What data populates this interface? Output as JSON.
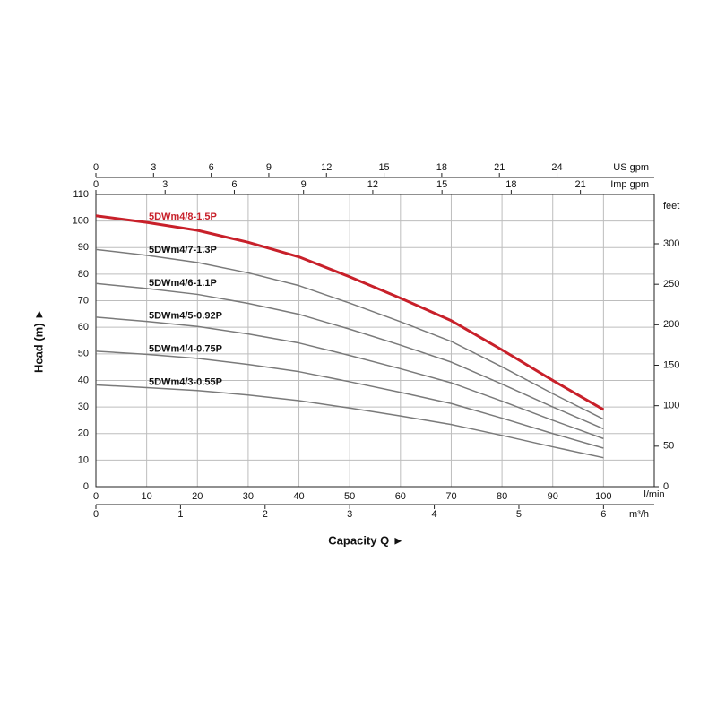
{
  "chart_data": {
    "type": "line",
    "xlabel": "Capacity Q ►",
    "ylabel": "Head (m) ►",
    "x_unit": "l/min",
    "x": [
      0,
      10,
      20,
      30,
      40,
      50,
      60,
      70,
      80,
      90,
      100
    ],
    "xlim": [
      0,
      110
    ],
    "xticks": [
      0,
      10,
      20,
      30,
      40,
      50,
      60,
      70,
      80,
      90,
      100
    ],
    "ylim": [
      0,
      110
    ],
    "yticks": [
      0,
      10,
      20,
      30,
      40,
      50,
      60,
      70,
      80,
      90,
      100,
      110
    ],
    "y2_unit": "feet",
    "y2lim": [
      0,
      360.9
    ],
    "y2ticks": [
      0,
      50,
      100,
      150,
      200,
      250,
      300
    ],
    "grid": true,
    "extra_x_axes": [
      {
        "unit": "m³/h",
        "position": "bottom",
        "xlim": [
          0,
          6.6
        ],
        "xticks": [
          0,
          1,
          2,
          3,
          4,
          5,
          6
        ]
      },
      {
        "unit": "Imp gpm",
        "position": "top",
        "xlim": [
          0,
          24.2
        ],
        "xticks": [
          0,
          3,
          6,
          9,
          12,
          15,
          18,
          21
        ]
      },
      {
        "unit": "US gpm",
        "position": "top",
        "xlim": [
          0,
          29.06
        ],
        "xticks": [
          0,
          3,
          6,
          9,
          12,
          15,
          18,
          21,
          24
        ]
      }
    ],
    "series": [
      {
        "name": "5DWm4/8-1.5P",
        "color": "#c8202a",
        "values": [
          102,
          99.5,
          96.5,
          92,
          86.5,
          79,
          71,
          62.5,
          51.5,
          40,
          29
        ]
      },
      {
        "name": "5DWm4/7-1.3P",
        "color": "#7a7a7a",
        "values": [
          89.3,
          87.1,
          84.4,
          80.5,
          75.7,
          69.1,
          62.1,
          54.7,
          45.1,
          35,
          25.4
        ]
      },
      {
        "name": "5DWm4/6-1.1P",
        "color": "#7a7a7a",
        "values": [
          76.5,
          74.6,
          72.4,
          69,
          64.9,
          59.3,
          53.3,
          46.9,
          38.6,
          30,
          21.8
        ]
      },
      {
        "name": "5DWm4/5-0.92P",
        "color": "#7a7a7a",
        "values": [
          63.8,
          62.2,
          60.3,
          57.5,
          54.1,
          49.4,
          44.4,
          39.1,
          32.2,
          25,
          18.1
        ]
      },
      {
        "name": "5DWm4/4-0.75P",
        "color": "#7a7a7a",
        "values": [
          51,
          49.8,
          48.3,
          46,
          43.3,
          39.5,
          35.5,
          31.3,
          25.8,
          20,
          14.5
        ]
      },
      {
        "name": "5DWm4/3-0.55P",
        "color": "#7a7a7a",
        "values": [
          38.3,
          37.3,
          36.2,
          34.5,
          32.4,
          29.6,
          26.6,
          23.4,
          19.3,
          15,
          10.9
        ]
      }
    ]
  }
}
